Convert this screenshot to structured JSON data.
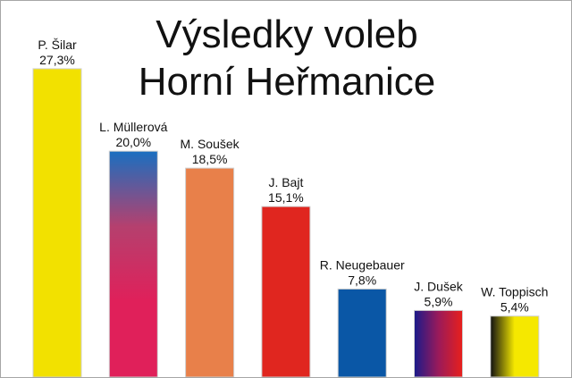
{
  "chart_data": {
    "type": "bar",
    "title_lines": [
      "Výsledky voleb",
      "Horní Heřmanice"
    ],
    "categories": [
      "P. Šilar",
      "L. Müllerová",
      "M. Soušek",
      "J. Bajt",
      "R. Neugebauer",
      "J. Dušek",
      "W. Toppisch"
    ],
    "value_labels": [
      "27,3%",
      "20,0%",
      "18,5%",
      "15,1%",
      "7,8%",
      "5,9%",
      "5,4%"
    ],
    "values": [
      27.3,
      20.0,
      18.5,
      15.1,
      7.8,
      5.9,
      5.4
    ],
    "ylim": [
      0,
      30.3
    ],
    "grid": false,
    "bar_fills": [
      {
        "type": "solid",
        "colors": [
          "#f2e100"
        ]
      },
      {
        "type": "vertical-gradient",
        "colors": [
          "#1a6fc0",
          "#b5406e",
          "#e0205a",
          "#e0205a"
        ]
      },
      {
        "type": "solid",
        "colors": [
          "#e8804a"
        ]
      },
      {
        "type": "solid",
        "colors": [
          "#e0261f"
        ]
      },
      {
        "type": "solid",
        "colors": [
          "#0a57a6"
        ]
      },
      {
        "type": "horizontal-gradient",
        "colors": [
          "#1a1a8a",
          "#9a1a5a",
          "#e8201c"
        ]
      },
      {
        "type": "horizontal-gradient",
        "colors": [
          "#111111",
          "#f5e800",
          "#f5e800"
        ]
      }
    ]
  }
}
